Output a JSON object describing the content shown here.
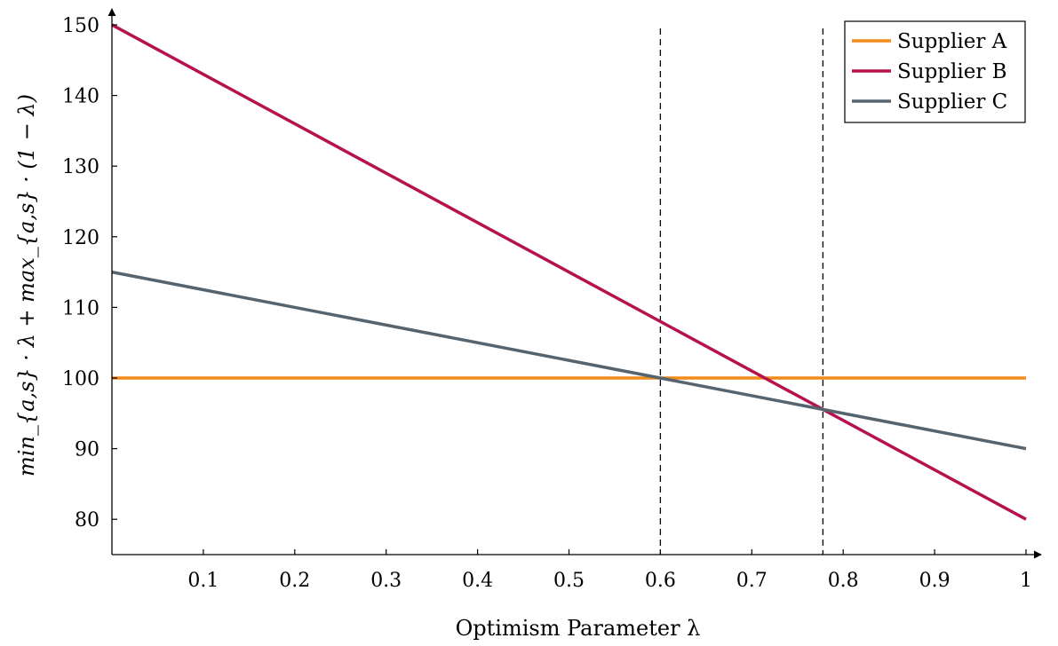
{
  "chart_data": {
    "type": "line",
    "xlabel": "Optimism Parameter λ",
    "ylabel": "min_{a,s} · λ + max_{a,s} · (1 − λ)",
    "xlim": [
      0,
      1
    ],
    "ylim": [
      75,
      150
    ],
    "xticks": [
      0.1,
      0.2,
      0.3,
      0.4,
      0.5,
      0.6,
      0.7,
      0.8,
      0.9,
      1
    ],
    "xtick_labels": [
      "0.1",
      "0.2",
      "0.3",
      "0.4",
      "0.5",
      "0.6",
      "0.7",
      "0.8",
      "0.9",
      "1"
    ],
    "yticks": [
      80,
      90,
      100,
      110,
      120,
      130,
      140,
      150
    ],
    "ytick_labels": [
      "80",
      "90",
      "100",
      "110",
      "120",
      "130",
      "140",
      "150"
    ],
    "grid": false,
    "legend_position": "top-right",
    "series": [
      {
        "name": "Supplier A",
        "color": "#f28a1a",
        "x": [
          0,
          1
        ],
        "y": [
          100,
          100
        ]
      },
      {
        "name": "Supplier B",
        "color": "#b5124e",
        "x": [
          0,
          1
        ],
        "y": [
          150,
          80
        ]
      },
      {
        "name": "Supplier C",
        "color": "#56646f",
        "x": [
          0,
          1
        ],
        "y": [
          115,
          90
        ]
      }
    ],
    "vertical_lines": [
      {
        "x": 0.6,
        "style": "dashed"
      },
      {
        "x": 0.7778,
        "style": "dashed"
      }
    ]
  }
}
